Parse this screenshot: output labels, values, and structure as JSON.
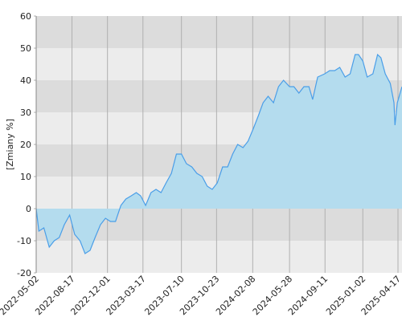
{
  "chart_data": {
    "type": "area",
    "ylabel": "[Zmiany %]",
    "x": [
      "2022-05-02",
      "2022-05-10",
      "2022-05-25",
      "2022-06-10",
      "2022-06-25",
      "2022-07-10",
      "2022-07-25",
      "2022-08-10",
      "2022-08-25",
      "2022-09-10",
      "2022-09-25",
      "2022-10-10",
      "2022-10-25",
      "2022-11-10",
      "2022-11-25",
      "2022-12-10",
      "2022-12-25",
      "2023-01-10",
      "2023-01-25",
      "2023-02-10",
      "2023-02-25",
      "2023-03-10",
      "2023-03-25",
      "2023-04-10",
      "2023-04-25",
      "2023-05-10",
      "2023-05-25",
      "2023-06-10",
      "2023-06-25",
      "2023-07-10",
      "2023-07-25",
      "2023-08-10",
      "2023-08-25",
      "2023-09-10",
      "2023-09-25",
      "2023-10-10",
      "2023-10-25",
      "2023-11-10",
      "2023-11-25",
      "2023-12-10",
      "2023-12-25",
      "2024-01-10",
      "2024-01-25",
      "2024-02-10",
      "2024-02-25",
      "2024-03-10",
      "2024-03-25",
      "2024-04-10",
      "2024-04-25",
      "2024-05-10",
      "2024-05-28",
      "2024-06-10",
      "2024-06-25",
      "2024-07-10",
      "2024-07-25",
      "2024-08-05",
      "2024-08-20",
      "2024-09-10",
      "2024-09-25",
      "2024-10-10",
      "2024-10-25",
      "2024-11-10",
      "2024-11-25",
      "2024-12-10",
      "2024-12-20",
      "2025-01-02",
      "2025-01-15",
      "2025-02-01",
      "2025-02-15",
      "2025-02-25",
      "2025-03-10",
      "2025-03-25",
      "2025-04-05",
      "2025-04-08",
      "2025-04-15",
      "2025-04-29"
    ],
    "values": [
      0,
      -7,
      -6,
      -12,
      -10,
      -9,
      -5,
      -2,
      -8,
      -10,
      -14,
      -13,
      -9,
      -5,
      -3,
      -4,
      -4,
      1,
      3,
      4,
      5,
      4,
      1,
      5,
      6,
      5,
      8,
      11,
      17,
      17,
      14,
      13,
      11,
      10,
      7,
      6,
      8,
      13,
      13,
      17,
      20,
      19,
      21,
      25,
      29,
      33,
      35,
      33,
      38,
      40,
      38,
      38,
      36,
      38,
      38,
      34,
      41,
      42,
      43,
      43,
      44,
      41,
      42,
      48,
      48,
      46,
      41,
      42,
      48,
      47,
      42,
      39,
      33,
      26,
      33,
      38
    ],
    "color": "#4a9ee8",
    "fill": "#b4dcee",
    "xlim": [
      "2022-05-02",
      "2025-04-29"
    ],
    "xticks": [
      "2022-05-02",
      "2022-08-17",
      "2022-12-01",
      "2023-03-17",
      "2023-07-10",
      "2023-10-23",
      "2024-02-08",
      "2024-05-28",
      "2024-09-11",
      "2025-01-02",
      "2025-04-17"
    ],
    "ylim": [
      -20,
      60
    ],
    "yticks": [
      -20,
      -10,
      0,
      10,
      20,
      30,
      40,
      50,
      60
    ],
    "grid": true
  }
}
